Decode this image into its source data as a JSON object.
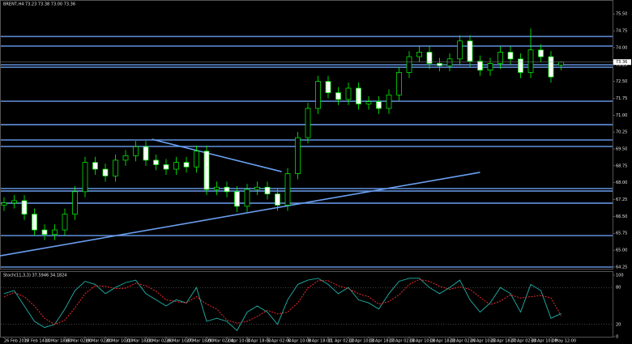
{
  "chart_data": {
    "type": "candlestick",
    "title": "BRENT,H4  73.23 73.38 73.00 73.36",
    "categories": [
      "26 Feb 2018",
      null,
      "27 Feb 14:00",
      null,
      "14 Mar 18:00",
      null,
      "16 Mar 02:00",
      null,
      "19 Mar 02:00",
      null,
      "20 Mar 10:00",
      null,
      "21 Mar 18:00",
      null,
      "23 Mar 02:00",
      null,
      "26 Mar 10:00",
      null,
      "27 Mar 18:00",
      null,
      "29 Mar 02:00",
      null,
      "2 Apr 10:00",
      null,
      "3 Apr 18:00",
      null,
      "5 Apr 02:00",
      null,
      "6 Apr 10:00",
      null,
      "9 Apr 18:00",
      null,
      "11 Apr 02:00",
      null,
      "12 Apr 10:00",
      null,
      "13 Apr 18:00",
      null,
      "17 Apr 02:00",
      null,
      "18 Apr 10:00",
      null,
      "19 Apr 18:00",
      null,
      "23 Apr 02:00",
      null,
      "24 Apr 10:00",
      null,
      "25 Apr 18:00",
      null,
      "27 Apr 02:00",
      null,
      "30 Apr 10:00",
      null,
      "1 May 12:00",
      null
    ],
    "open": [
      67.0,
      67.1,
      67.2,
      66.6,
      65.9,
      65.7,
      65.9,
      66.6,
      67.6,
      68.9,
      68.6,
      68.3,
      69.0,
      69.2,
      69.6,
      69.0,
      68.8,
      68.6,
      68.9,
      68.7,
      69.4,
      67.7,
      67.8,
      67.6,
      66.95,
      67.7,
      67.8,
      67.5,
      67.0,
      68.4,
      70.0,
      71.3,
      72.5,
      72.0,
      71.7,
      72.2,
      71.5,
      71.6,
      71.3,
      71.9,
      72.9,
      73.6,
      73.8,
      73.3,
      73.2,
      73.5,
      74.3,
      73.4,
      73.0,
      73.3,
      73.8,
      73.5,
      72.9,
      73.9,
      73.6,
      73.23
    ],
    "high": [
      67.35,
      67.45,
      67.45,
      66.85,
      66.15,
      66.15,
      66.85,
      67.85,
      69.15,
      69.15,
      68.85,
      69.25,
      69.45,
      69.85,
      69.85,
      69.25,
      69.05,
      69.15,
      69.15,
      69.65,
      69.65,
      68.05,
      68.05,
      67.85,
      67.95,
      68.05,
      68.05,
      67.75,
      68.65,
      70.25,
      71.55,
      72.75,
      72.75,
      72.25,
      72.45,
      72.45,
      71.85,
      71.85,
      72.15,
      73.15,
      73.85,
      74.05,
      74.05,
      73.55,
      73.75,
      74.55,
      74.55,
      73.65,
      73.55,
      74.05,
      74.05,
      73.75,
      74.85,
      74.15,
      73.85,
      73.38
    ],
    "low": [
      66.75,
      66.85,
      66.35,
      65.65,
      65.45,
      65.45,
      65.65,
      66.35,
      67.35,
      68.35,
      68.05,
      68.05,
      68.75,
      68.95,
      68.75,
      68.55,
      68.35,
      68.35,
      68.45,
      68.45,
      67.45,
      67.45,
      67.35,
      66.7,
      66.7,
      67.45,
      67.25,
      66.75,
      66.75,
      68.15,
      69.75,
      71.05,
      71.75,
      71.45,
      71.45,
      71.25,
      71.25,
      71.05,
      71.05,
      71.65,
      72.65,
      73.35,
      73.05,
      72.95,
      72.95,
      73.25,
      73.15,
      72.75,
      72.75,
      73.05,
      73.25,
      72.65,
      72.65,
      73.35,
      72.45,
      73.0
    ],
    "close": [
      67.1,
      67.2,
      66.6,
      65.9,
      65.7,
      65.9,
      66.6,
      67.6,
      68.9,
      68.6,
      68.3,
      69.0,
      69.2,
      69.6,
      69.0,
      68.8,
      68.6,
      68.9,
      68.7,
      69.4,
      67.7,
      67.8,
      67.6,
      66.95,
      67.7,
      67.8,
      67.5,
      67.0,
      68.4,
      70.0,
      71.3,
      72.5,
      72.0,
      71.7,
      72.2,
      71.5,
      71.6,
      71.3,
      71.9,
      72.9,
      73.6,
      73.8,
      73.3,
      73.2,
      73.5,
      74.3,
      73.4,
      73.0,
      73.3,
      73.8,
      73.5,
      72.9,
      73.9,
      73.6,
      72.7,
      73.36
    ],
    "candle_color": "#00ff00",
    "bull_fill": "#000000",
    "bear_fill": "#ffffff",
    "ylim": [
      64.14,
      76.12
    ],
    "yticks": [
      64.25,
      {
        "value": 65,
        "label": "65.00"
      },
      65.75,
      {
        "value": 66.5,
        "label": "66.50"
      },
      67.25,
      {
        "value": 68,
        "label": "68.00"
      },
      68.75,
      {
        "value": 69.5,
        "label": "69.50"
      },
      70.25,
      {
        "value": 71,
        "label": "71.00"
      },
      71.75,
      {
        "value": 72.5,
        "label": "72.50"
      },
      73.25,
      {
        "value": 74,
        "label": "74.00"
      },
      74.75,
      {
        "value": 75.5,
        "label": "75.50"
      }
    ],
    "levels": [
      74.5,
      74.07,
      73.24,
      73.13,
      71.62,
      70.58,
      69.9,
      69.61,
      67.74,
      67.63,
      67.09,
      65.65,
      64.25
    ],
    "level_color": "#6a9ef0",
    "trendlines": [
      {
        "x": [
          -0.4,
          47
        ],
        "y": [
          64.75,
          68.46
        ]
      },
      {
        "x": [
          14.6,
          27.4
        ],
        "y": [
          69.93,
          68.49
        ]
      }
    ],
    "indicator": {
      "label": "Stoch(11,3,3) 37.5946 34.1824",
      "main": [
        70,
        75,
        50,
        25,
        15,
        20,
        45,
        75,
        90,
        85,
        70,
        80,
        88,
        92,
        70,
        60,
        50,
        60,
        55,
        80,
        25,
        30,
        25,
        10,
        40,
        50,
        40,
        20,
        60,
        85,
        92,
        95,
        85,
        70,
        80,
        60,
        55,
        45,
        70,
        90,
        95,
        95,
        80,
        70,
        80,
        92,
        60,
        40,
        55,
        80,
        70,
        40,
        85,
        75,
        30,
        37.59
      ],
      "signal": [
        65,
        72,
        65,
        50,
        30,
        20,
        27,
        47,
        70,
        83,
        82,
        78,
        79,
        87,
        83,
        74,
        60,
        57,
        55,
        65,
        53,
        45,
        27,
        22,
        25,
        33,
        43,
        37,
        40,
        55,
        79,
        91,
        91,
        83,
        78,
        70,
        65,
        53,
        57,
        68,
        85,
        93,
        90,
        82,
        77,
        81,
        77,
        64,
        52,
        58,
        68,
        63,
        65,
        67,
        63,
        34.18
      ],
      "main_color": "#20b2aa",
      "signal_color": "#ff3030",
      "ylim": [
        0,
        100
      ],
      "yticks": [
        0,
        20,
        80,
        100
      ]
    }
  }
}
